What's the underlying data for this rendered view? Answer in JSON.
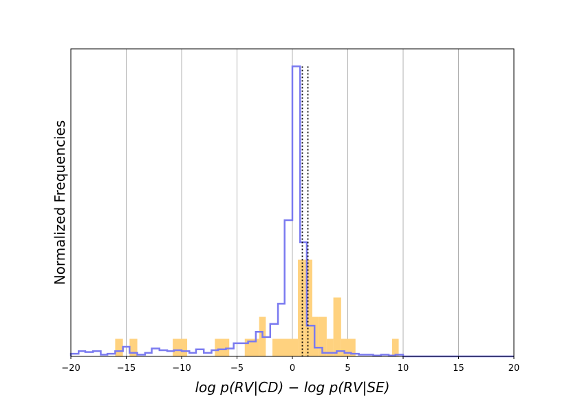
{
  "chart_data": {
    "type": "histogram",
    "xlabel": "log p(RV|CD) − log p(RV|SE)",
    "ylabel": "Normalized Frequencies",
    "xlim": [
      -20,
      20
    ],
    "ylim": [
      0,
      0.35
    ],
    "xticks": [
      -20,
      -15,
      -10,
      -5,
      0,
      5,
      10,
      15,
      20
    ],
    "xtick_labels": [
      "−20",
      "−15",
      "−10",
      "−5",
      "0",
      "5",
      "10",
      "15",
      "20"
    ],
    "grid": "vertical",
    "colors": {
      "filled_series": "#FFD27F",
      "step_series": "#7A7AF0",
      "reference_lines": "#000000",
      "grid": "#b0b0b0"
    },
    "series": [
      {
        "style": "filled",
        "bins": [
          {
            "x0": -16.0,
            "x1": -15.3,
            "y": 0.02
          },
          {
            "x0": -14.7,
            "x1": -14.0,
            "y": 0.02
          },
          {
            "x0": -10.8,
            "x1": -9.5,
            "y": 0.02
          },
          {
            "x0": -7.0,
            "x1": -5.7,
            "y": 0.02
          },
          {
            "x0": -4.3,
            "x1": -3.0,
            "y": 0.02
          },
          {
            "x0": -3.0,
            "x1": -2.4,
            "y": 0.045
          },
          {
            "x0": -1.8,
            "x1": 0.5,
            "y": 0.02
          },
          {
            "x0": 0.5,
            "x1": 1.1,
            "y": 0.11
          },
          {
            "x0": 1.1,
            "x1": 1.8,
            "y": 0.11
          },
          {
            "x0": 1.8,
            "x1": 2.4,
            "y": 0.045
          },
          {
            "x0": 2.4,
            "x1": 3.1,
            "y": 0.045
          },
          {
            "x0": 3.1,
            "x1": 3.7,
            "y": 0.02
          },
          {
            "x0": 3.7,
            "x1": 4.4,
            "y": 0.067
          },
          {
            "x0": 4.4,
            "x1": 5.7,
            "y": 0.02
          },
          {
            "x0": 9.0,
            "x1": 9.6,
            "y": 0.02
          }
        ]
      },
      {
        "style": "step",
        "edges": [
          -20.0,
          -19.3,
          -18.7,
          -18.0,
          -17.3,
          -16.7,
          -16.0,
          -15.3,
          -14.7,
          -14.0,
          -13.3,
          -12.7,
          -12.0,
          -11.3,
          -10.7,
          -10.0,
          -9.3,
          -8.7,
          -8.0,
          -7.3,
          -6.7,
          -6.0,
          -5.3,
          -4.7,
          -4.0,
          -3.3,
          -2.7,
          -2.0,
          -1.3,
          -0.7,
          0.0,
          0.7,
          1.3,
          2.0,
          2.7,
          3.3,
          4.0,
          4.7,
          5.3,
          6.0,
          6.7,
          7.3,
          8.0,
          8.7,
          9.3,
          10.0,
          10.7,
          11.3
        ],
        "values": [
          0.003,
          0.006,
          0.005,
          0.006,
          0.002,
          0.003,
          0.006,
          0.011,
          0.004,
          0.002,
          0.004,
          0.009,
          0.007,
          0.006,
          0.007,
          0.006,
          0.004,
          0.008,
          0.004,
          0.007,
          0.008,
          0.009,
          0.015,
          0.015,
          0.017,
          0.028,
          0.022,
          0.037,
          0.06,
          0.155,
          0.33,
          0.13,
          0.035,
          0.01,
          0.004,
          0.004,
          0.006,
          0.004,
          0.003,
          0.002,
          0.002,
          0.001,
          0.002,
          0.001,
          0.002,
          0.0,
          0.0
        ],
        "baseline_extends_to": 20.0
      }
    ],
    "vertical_reference_lines": [
      0.9,
      1.4
    ]
  }
}
